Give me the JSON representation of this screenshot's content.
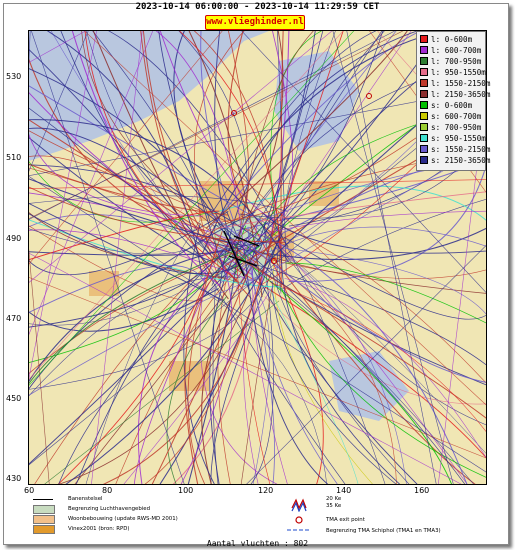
{
  "header": {
    "period": "2023-10-14 06:00:00 - 2023-10-14 11:29:59 CET",
    "site": "www.vlieghinder.nl"
  },
  "map": {
    "y_ticks": [
      "530",
      "510",
      "490",
      "470",
      "450",
      "430"
    ],
    "x_ticks": [
      "60",
      "80",
      "100",
      "120",
      "140",
      "160"
    ],
    "colors": {
      "land": "#f0e6b4",
      "water": "#b9c7df",
      "airport": "#c8dcc0",
      "urban": "#e9b66e"
    }
  },
  "legend": [
    {
      "label": "l: 0-600m",
      "color": "#e41a1c"
    },
    {
      "label": "l: 600-700m",
      "color": "#a02ad0"
    },
    {
      "label": "l: 700-950m",
      "color": "#2e7d32"
    },
    {
      "label": "l: 950-1550m",
      "color": "#e46b8a"
    },
    {
      "label": "l: 1550-2150m",
      "color": "#c0392b"
    },
    {
      "label": "l: 2150-3650m",
      "color": "#8b2e2e"
    },
    {
      "label": "s: 0-600m",
      "color": "#00c000"
    },
    {
      "label": "s: 600-700m",
      "color": "#c8c800"
    },
    {
      "label": "s: 700-950m",
      "color": "#9acd32"
    },
    {
      "label": "s: 950-1550m",
      "color": "#40e0d0"
    },
    {
      "label": "s: 1550-2150m",
      "color": "#6a5acd"
    },
    {
      "label": "s: 2150-3650m",
      "color": "#2b2b8c"
    }
  ],
  "bottom_legend": {
    "runway": "Banenstelsel",
    "airport_boundary": "Begrenzing Luchthavengebied",
    "housing": "Woonbebouwing (update RWS-MD 2001)",
    "vinex": "Vinex2001 (bron: RPD)",
    "noise_20": "20 Ke",
    "noise_35": "35 Ke",
    "tma_exit": "TMA exit point",
    "tma_boundary": "Begrenzing TMA Schiphol  (TMA1 en TMA3)"
  },
  "footer": {
    "count": "Aantal vluchten : 802"
  }
}
